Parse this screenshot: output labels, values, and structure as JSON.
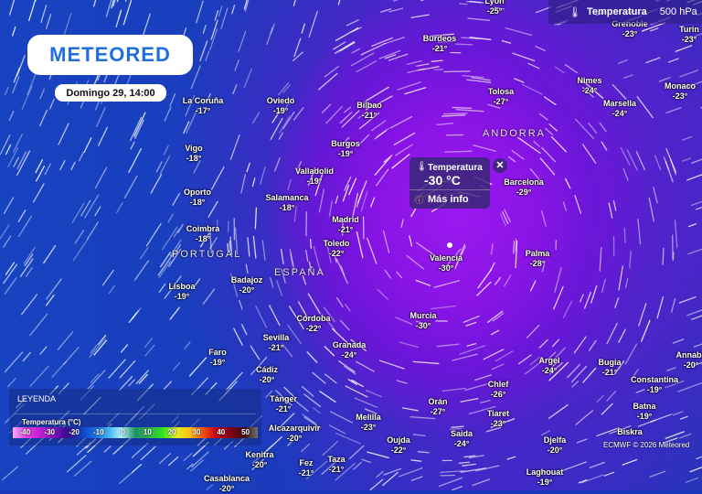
{
  "header": {
    "logo": "METEORED",
    "date": "Domingo 29, 14:00"
  },
  "layer": {
    "icon": "thermometer-icon",
    "name": "Temperatura",
    "level": "500 hPa"
  },
  "popup": {
    "title": "Temperatura",
    "value": "-30 °C",
    "more": "Más info",
    "close": "✕"
  },
  "legend": {
    "title": "LEYENDA",
    "subtitle": "Temperatura (°C)",
    "ticks": [
      "-40",
      "-30",
      "-20",
      "-10",
      "0",
      "10",
      "20",
      "30",
      "40",
      "50"
    ],
    "colors": [
      "#f8a8f8",
      "#e040e0",
      "#c020d0",
      "#8010c0",
      "#3a0c8a",
      "#1040c0",
      "#1a6ae0",
      "#40b0f0",
      "#b0f0ff",
      "#209060",
      "#30b050",
      "#30e020",
      "#e0f020",
      "#ffc010",
      "#f05010",
      "#c00010",
      "#800010",
      "#401010",
      "#707070"
    ]
  },
  "countries": [
    "PORTUGAL",
    "ESPAÑA",
    "ANDORRA"
  ],
  "cities": [
    {
      "name": "Lyon",
      "temp": "-25°"
    },
    {
      "name": "Burdeos",
      "temp": "-21°"
    },
    {
      "name": "Grenoble",
      "temp": "-23°"
    },
    {
      "name": "Turin",
      "temp": "-23°"
    },
    {
      "name": "Nimes",
      "temp": "-24°"
    },
    {
      "name": "Monaco",
      "temp": "-23°"
    },
    {
      "name": "Marsella",
      "temp": "-24°"
    },
    {
      "name": "Tolosa",
      "temp": "-27°"
    },
    {
      "name": "La Coruña",
      "temp": "-17°"
    },
    {
      "name": "Oviedo",
      "temp": "-19°"
    },
    {
      "name": "Bilbao",
      "temp": "-21°"
    },
    {
      "name": "Burgos",
      "temp": "-19°"
    },
    {
      "name": "Vigo",
      "temp": "-18°"
    },
    {
      "name": "Valladolid",
      "temp": "-19°"
    },
    {
      "name": "Oporto",
      "temp": "-18°"
    },
    {
      "name": "Salamanca",
      "temp": "-18°"
    },
    {
      "name": "Madrid",
      "temp": "-21°"
    },
    {
      "name": "Coimbra",
      "temp": "-18°"
    },
    {
      "name": "Toledo",
      "temp": "-22°"
    },
    {
      "name": "Valencia",
      "temp": "-30°"
    },
    {
      "name": "Palma",
      "temp": "-28°"
    },
    {
      "name": "Barcelona",
      "temp": "-29°"
    },
    {
      "name": "Badajoz",
      "temp": "-20°"
    },
    {
      "name": "Lisboa",
      "temp": "-19°"
    },
    {
      "name": "Córdoba",
      "temp": "-22°"
    },
    {
      "name": "Murcia",
      "temp": "-30°"
    },
    {
      "name": "Sevilla",
      "temp": "-21°"
    },
    {
      "name": "Granada",
      "temp": "-24°"
    },
    {
      "name": "Faro",
      "temp": "-19°"
    },
    {
      "name": "Cádiz",
      "temp": "-20°"
    },
    {
      "name": "Argel",
      "temp": "-24°"
    },
    {
      "name": "Bugia",
      "temp": "-21°"
    },
    {
      "name": "Annaba",
      "temp": "-20°"
    },
    {
      "name": "Constantina",
      "temp": "-19°"
    },
    {
      "name": "Chlef",
      "temp": "-26°"
    },
    {
      "name": "Tánger",
      "temp": "-21°"
    },
    {
      "name": "Orán",
      "temp": "-27°"
    },
    {
      "name": "Batna",
      "temp": "-19°"
    },
    {
      "name": "Tiaret",
      "temp": "-23°"
    },
    {
      "name": "Melilla",
      "temp": "-23°"
    },
    {
      "name": "Alcazarquivir",
      "temp": "-20°"
    },
    {
      "name": "Saida",
      "temp": "-24°"
    },
    {
      "name": "Biskra",
      "temp": ""
    },
    {
      "name": "Oujda",
      "temp": "-22°"
    },
    {
      "name": "Djelfa",
      "temp": "-20°"
    },
    {
      "name": "Kenitra",
      "temp": "-20°"
    },
    {
      "name": "Fez",
      "temp": "-21°"
    },
    {
      "name": "Taza",
      "temp": "-21°"
    },
    {
      "name": "Laghouat",
      "temp": "-19°"
    },
    {
      "name": "Casablanca",
      "temp": "-20°"
    }
  ],
  "credit": "ECMWF © 2026 Meteored"
}
